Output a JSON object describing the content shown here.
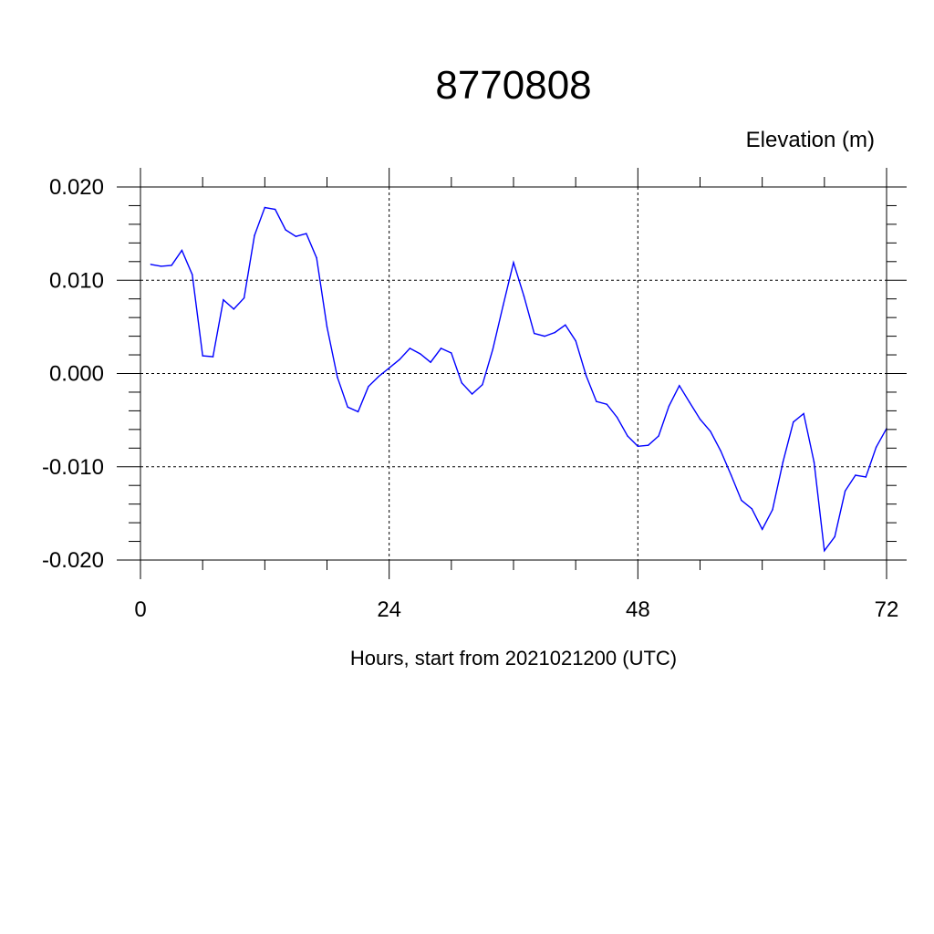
{
  "chart_data": {
    "type": "line",
    "title": "8770808",
    "subtitle": "Elevation (m)",
    "xlabel": "Hours, start from 2021021200 (UTC)",
    "ylabel": "",
    "xlim": [
      0,
      72
    ],
    "ylim": [
      -0.02,
      0.02
    ],
    "x_ticks": [
      0,
      24,
      48,
      72
    ],
    "x_tick_labels": [
      "0",
      "24",
      "48",
      "72"
    ],
    "y_ticks": [
      0.02,
      0.01,
      0.0,
      -0.01,
      -0.02
    ],
    "y_tick_labels": [
      "0.020",
      "0.010",
      "0.000",
      "-0.010",
      "-0.020"
    ],
    "grid": true,
    "line_color": "#0000ff",
    "series": [
      {
        "x": [
          1,
          2,
          3,
          4,
          5,
          6,
          7,
          8,
          9,
          10,
          11,
          12,
          13,
          14,
          15,
          16,
          17,
          18,
          19,
          20,
          21,
          22,
          23,
          24,
          25,
          26,
          27,
          28,
          29,
          30,
          31,
          32,
          33,
          34,
          35,
          36,
          37,
          38,
          39,
          40,
          41,
          42,
          43,
          44,
          45,
          46,
          47,
          48,
          49,
          50,
          51,
          52,
          53,
          54,
          55,
          56,
          57,
          58,
          59,
          60,
          61,
          62,
          63,
          64,
          65,
          66,
          67,
          68,
          69,
          70,
          71,
          72
        ],
        "y": [
          0.0117,
          0.0115,
          0.0116,
          0.0132,
          0.0106,
          0.0019,
          0.0018,
          0.0079,
          0.0069,
          0.0081,
          0.0148,
          0.0178,
          0.0176,
          0.0154,
          0.0147,
          0.015,
          0.0124,
          0.005,
          -0.0004,
          -0.0036,
          -0.0041,
          -0.0014,
          -0.0003,
          0.0006,
          0.0015,
          0.0027,
          0.0021,
          0.0012,
          0.0027,
          0.0022,
          -0.001,
          -0.0022,
          -0.0012,
          0.0026,
          0.0073,
          0.0119,
          0.0083,
          0.0043,
          0.004,
          0.0044,
          0.0052,
          0.0035,
          -0.0002,
          -0.003,
          -0.0033,
          -0.0047,
          -0.0067,
          -0.0078,
          -0.0077,
          -0.0067,
          -0.0035,
          -0.0013,
          -0.0031,
          -0.0049,
          -0.0062,
          -0.0083,
          -0.0109,
          -0.0136,
          -0.0145,
          -0.0167,
          -0.0146,
          -0.0095,
          -0.0052,
          -0.0043,
          -0.0095,
          -0.019,
          -0.0175,
          -0.0126,
          -0.0109,
          -0.0111,
          -0.0079,
          -0.0059
        ]
      }
    ]
  }
}
